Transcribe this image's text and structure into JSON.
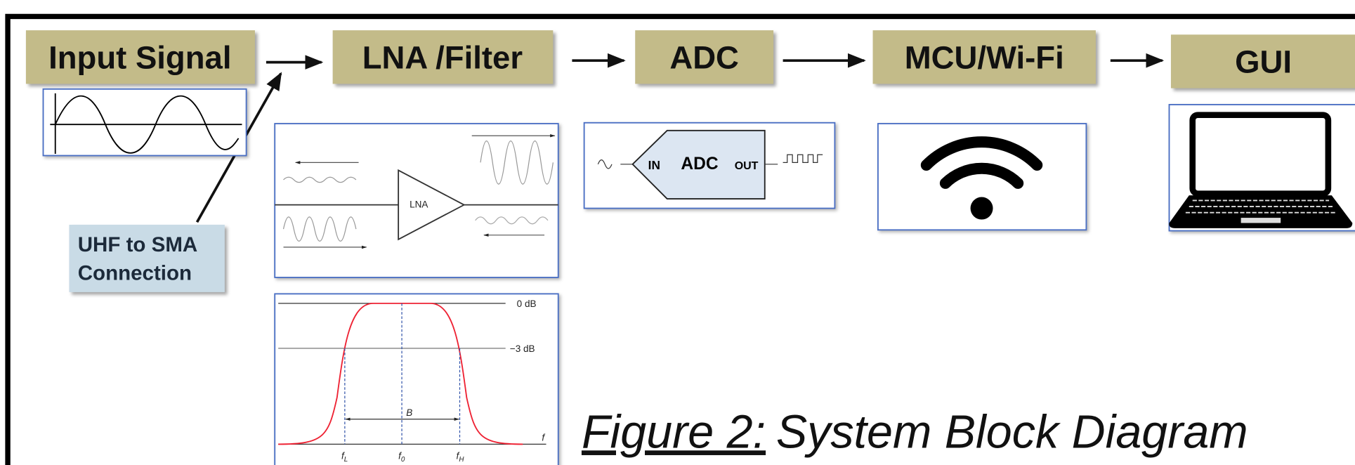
{
  "nodes": [
    {
      "label": "Input Signal"
    },
    {
      "label": "LNA /Filter"
    },
    {
      "label": "ADC"
    },
    {
      "label": "MCU/Wi-Fi"
    },
    {
      "label": "GUI"
    }
  ],
  "annotation": {
    "lines": [
      "UHF to SMA",
      "Connection"
    ]
  },
  "lna_diagram": {
    "label": "LNA"
  },
  "adc_diagram": {
    "input": "IN",
    "label": "ADC",
    "output": "OUT"
  },
  "filter_plot": {
    "levels": [
      "0 dB",
      "−3 dB"
    ],
    "bandwidth": "B",
    "axis": "f",
    "frequencies": [
      {
        "symbol": "f",
        "subscript": "L"
      },
      {
        "symbol": "f",
        "subscript": "0"
      },
      {
        "symbol": "f",
        "subscript": "H"
      }
    ]
  },
  "caption": {
    "label": "Figure 2:",
    "text": "System Block Diagram"
  }
}
